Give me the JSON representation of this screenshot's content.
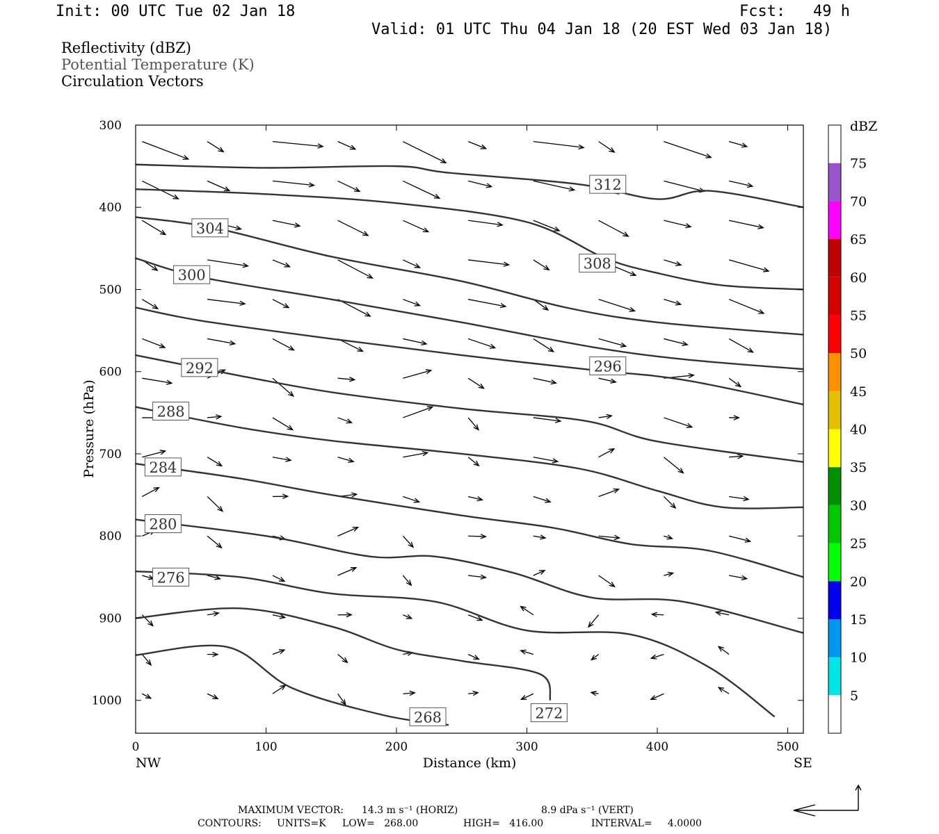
{
  "header": {
    "init": "Init: 00 UTC Tue 02 Jan 18",
    "fcst": "Fcst:   49 h",
    "valid": "Valid: 01 UTC Thu 04 Jan 18 (20 EST Wed 03 Jan 18)"
  },
  "fields": [
    "Reflectivity (dBZ)",
    "Potential Temperature (K)",
    "Circulation Vectors"
  ],
  "footer": {
    "max_vector_label": "MAXIMUM VECTOR:",
    "horiz": "14.3 m s⁻¹ (HORIZ)",
    "vert": "8.9 dPa s⁻¹ (VERT)",
    "contours_label": "CONTOURS:",
    "units": "UNITS=K",
    "low": "LOW=   268.00",
    "high": "HIGH=   416.00",
    "interval": "INTERVAL=     4.0000"
  },
  "colors": {
    "contour": "#333333",
    "frame": "#000000"
  },
  "chart_data": {
    "type": "line",
    "xlabel": "Distance (km)",
    "ylabel": "Pressure (hPa)",
    "xlim": [
      0,
      512
    ],
    "ylim": [
      1040,
      300
    ],
    "x_ticks": [
      0,
      100,
      200,
      300,
      400,
      500
    ],
    "y_ticks": [
      300,
      400,
      500,
      600,
      700,
      800,
      900,
      1000
    ],
    "x_end_labels": {
      "left": "NW",
      "right": "SE"
    },
    "colorbar": {
      "title": "dBZ",
      "labels": [
        5,
        10,
        15,
        20,
        25,
        30,
        35,
        40,
        45,
        50,
        55,
        60,
        65,
        70,
        75
      ],
      "colors": [
        "#ffffff",
        "#00e6e6",
        "#0096f0",
        "#0000ee",
        "#00ff00",
        "#00c800",
        "#009000",
        "#ffff00",
        "#e6c000",
        "#ff9000",
        "#ff0000",
        "#d60000",
        "#c00000",
        "#ff00ff",
        "#9955c9",
        "#ffffff"
      ]
    },
    "theta_contours": [
      {
        "level": 312,
        "label_at": [
          362,
          372
        ],
        "points": [
          [
            0,
            348
          ],
          [
            100,
            352
          ],
          [
            200,
            350
          ],
          [
            240,
            358
          ],
          [
            340,
            372
          ],
          [
            400,
            390
          ],
          [
            440,
            380
          ],
          [
            512,
            400
          ]
        ]
      },
      {
        "level": 308,
        "label_at": [
          354,
          468
        ],
        "points": [
          [
            0,
            378
          ],
          [
            100,
            384
          ],
          [
            200,
            395
          ],
          [
            300,
            418
          ],
          [
            360,
            462
          ],
          [
            400,
            480
          ],
          [
            450,
            495
          ],
          [
            512,
            500
          ]
        ]
      },
      {
        "level": 304,
        "label_at": [
          57,
          425
        ],
        "points": [
          [
            0,
            412
          ],
          [
            60,
            425
          ],
          [
            150,
            460
          ],
          [
            250,
            490
          ],
          [
            330,
            522
          ],
          [
            400,
            540
          ],
          [
            512,
            555
          ]
        ]
      },
      {
        "level": 300,
        "label_at": [
          43,
          482
        ],
        "points": [
          [
            0,
            462
          ],
          [
            50,
            485
          ],
          [
            150,
            512
          ],
          [
            250,
            540
          ],
          [
            350,
            570
          ],
          [
            420,
            585
          ],
          [
            512,
            597
          ]
        ]
      },
      {
        "level": 296,
        "label_at": [
          362,
          593
        ],
        "points": [
          [
            0,
            522
          ],
          [
            50,
            538
          ],
          [
            150,
            560
          ],
          [
            250,
            580
          ],
          [
            350,
            598
          ],
          [
            420,
            610
          ],
          [
            512,
            640
          ]
        ]
      },
      {
        "level": 292,
        "label_at": [
          49,
          595
        ],
        "points": [
          [
            0,
            580
          ],
          [
            80,
            605
          ],
          [
            150,
            625
          ],
          [
            250,
            645
          ],
          [
            345,
            660
          ],
          [
            400,
            685
          ],
          [
            512,
            710
          ]
        ]
      },
      {
        "level": 288,
        "label_at": [
          27,
          648
        ],
        "points": [
          [
            0,
            643
          ],
          [
            80,
            668
          ],
          [
            150,
            684
          ],
          [
            250,
            700
          ],
          [
            340,
            718
          ],
          [
            400,
            745
          ],
          [
            450,
            765
          ],
          [
            512,
            765
          ]
        ]
      },
      {
        "level": 284,
        "label_at": [
          21,
          716
        ],
        "points": [
          [
            0,
            712
          ],
          [
            80,
            730
          ],
          [
            150,
            750
          ],
          [
            250,
            775
          ],
          [
            320,
            790
          ],
          [
            380,
            810
          ],
          [
            440,
            818
          ],
          [
            512,
            850
          ]
        ]
      },
      {
        "level": 280,
        "label_at": [
          21,
          785
        ],
        "points": [
          [
            0,
            780
          ],
          [
            100,
            800
          ],
          [
            180,
            825
          ],
          [
            230,
            825
          ],
          [
            290,
            845
          ],
          [
            350,
            875
          ],
          [
            420,
            880
          ],
          [
            512,
            918
          ]
        ]
      },
      {
        "level": 276,
        "label_at": [
          27,
          850
        ],
        "points": [
          [
            0,
            843
          ],
          [
            80,
            850
          ],
          [
            150,
            870
          ],
          [
            230,
            880
          ],
          [
            300,
            915
          ],
          [
            380,
            920
          ],
          [
            440,
            960
          ],
          [
            490,
            1020
          ]
        ]
      },
      {
        "level": 272,
        "label_at": [
          317,
          1015
        ],
        "points": [
          [
            0,
            900
          ],
          [
            80,
            888
          ],
          [
            150,
            910
          ],
          [
            200,
            938
          ],
          [
            250,
            952
          ],
          [
            310,
            968
          ],
          [
            318,
            1000
          ]
        ]
      },
      {
        "level": 268,
        "label_at": [
          224,
          1020
        ],
        "points": [
          [
            0,
            945
          ],
          [
            70,
            935
          ],
          [
            120,
            985
          ],
          [
            190,
            1018
          ],
          [
            240,
            1030
          ]
        ]
      }
    ],
    "wind_vectors": "circulation vectors drawn at grid points (NW to SE flow aloft, weak near surface)"
  }
}
